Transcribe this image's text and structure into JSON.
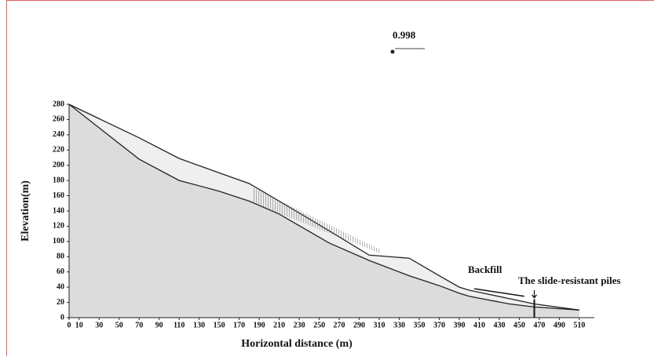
{
  "chart_data": {
    "type": "area",
    "xlabel": "Horizontal distance (m)",
    "ylabel": "Elevation(m)",
    "x": [
      0,
      70,
      110,
      150,
      180,
      210,
      260,
      300,
      340,
      370,
      390,
      400,
      440,
      465,
      510
    ],
    "series": [
      {
        "color": "#efefef",
        "values": [
          280,
          236,
          209,
          190,
          176,
          153,
          114,
          82,
          78,
          55,
          40,
          36,
          25,
          18,
          10
        ]
      },
      {
        "color": "#dcdcdc",
        "values": [
          280,
          208,
          180,
          166,
          153,
          136,
          98,
          75,
          55,
          42,
          32,
          28,
          18,
          14,
          10
        ]
      }
    ],
    "xlim": [
      0,
      525
    ],
    "ylim": [
      0,
      280
    ],
    "xticks": [
      0,
      10,
      30,
      50,
      70,
      90,
      110,
      130,
      150,
      170,
      190,
      210,
      230,
      250,
      270,
      290,
      310,
      330,
      350,
      370,
      390,
      410,
      430,
      450,
      470,
      490,
      510
    ],
    "yticks": [
      0,
      20,
      40,
      60,
      80,
      100,
      120,
      140,
      160,
      180,
      200,
      220,
      240,
      260,
      280
    ],
    "annotations": [
      "0.998",
      "Backfill",
      "The slide-resistant piles"
    ]
  }
}
